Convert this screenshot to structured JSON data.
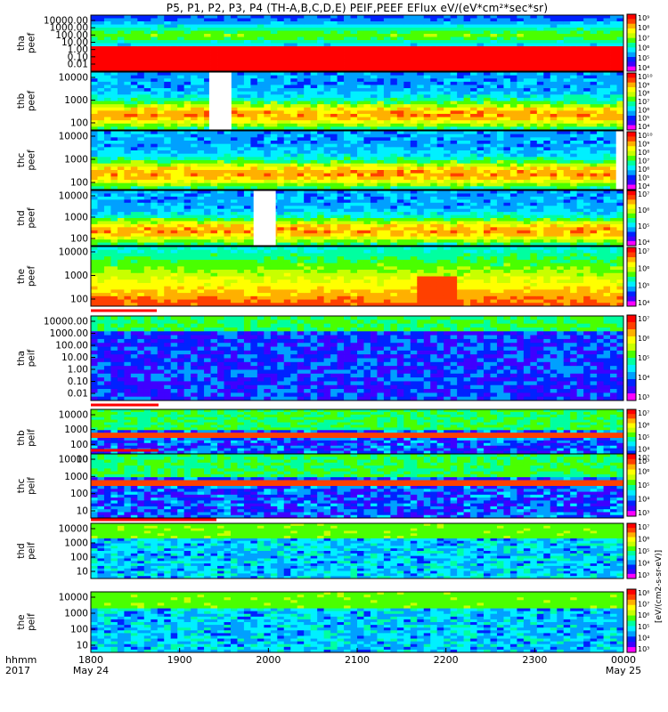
{
  "title": "P5, P1, P2, P3, P4 (TH-A,B,C,D,E) PEIF,PEEF EFlux eV/(eV*cm²*sec*sr)",
  "chart_data": {
    "type": "heatmap",
    "x_axis": {
      "range": [
        "1800",
        "0000"
      ],
      "ticks": [
        "1800",
        "1900",
        "2000",
        "2100",
        "2200",
        "2300",
        "0000"
      ],
      "dates": [
        "May 24",
        "May 25"
      ],
      "corner_label": "hhmm",
      "corner_year": "2017"
    },
    "colorbar_unit_label": "[eV/(cm2-s-sr-eV)]",
    "colorbar_label_short": "(eV/(cm2-s-sr-eV))",
    "colormap": [
      "#ff00ff",
      "#3f00ff",
      "#0022ff",
      "#00a0ff",
      "#00f0ff",
      "#00ffa0",
      "#4aff00",
      "#c8ff00",
      "#ffff00",
      "#ffb000",
      "#ff4000",
      "#ff0000"
    ],
    "panels": [
      {
        "probe": "tha",
        "product": "peef",
        "yticks": [
          "10000.00",
          "1000.00",
          "100.00",
          "10.00",
          "1.00",
          "0.10",
          "0.01"
        ],
        "cbar_ticks": [
          "10⁹",
          "10⁸",
          "10⁷",
          "10⁶",
          "10⁵",
          "10⁴"
        ],
        "gaps": []
      },
      {
        "probe": "thb",
        "product": "peef",
        "yticks": [
          "10000",
          "1000",
          "100"
        ],
        "cbar_ticks": [
          "10¹⁰",
          "10⁹",
          "10⁸",
          "10⁷",
          "10⁶",
          "10⁵",
          "10⁴"
        ],
        "gaps": [
          [
            1880,
            1895
          ]
        ]
      },
      {
        "probe": "thc",
        "product": "peef",
        "yticks": [
          "10000",
          "1000",
          "100"
        ],
        "cbar_ticks": [
          "10¹⁰",
          "10⁹",
          "10⁸",
          "10⁷",
          "10⁶",
          "10⁵",
          "10⁴"
        ],
        "gaps": [
          [
            2355,
            2400
          ]
        ]
      },
      {
        "probe": "thd",
        "product": "peef",
        "yticks": [
          "10000",
          "1000",
          "100"
        ],
        "cbar_ticks": [
          "10⁷",
          "10⁶",
          "10⁵",
          "10⁴"
        ],
        "gaps": [
          [
            1950,
            1965
          ]
        ]
      },
      {
        "probe": "the",
        "product": "peef",
        "yticks": [
          "10000",
          "1000",
          "100"
        ],
        "cbar_ticks": [
          "10⁷",
          "10⁶",
          "10⁵",
          "10⁴"
        ],
        "gaps": []
      },
      {
        "probe": "tha",
        "product": "peif",
        "yticks": [
          "10000.00",
          "1000.00",
          "100.00",
          "10.00",
          "1.00",
          "0.10",
          "0.01"
        ],
        "cbar_ticks": [
          "10⁷",
          "10⁶",
          "10⁵",
          "10⁴",
          "10³"
        ],
        "gaps": []
      },
      {
        "probe": "thb",
        "product": "peif",
        "yticks": [
          "10000",
          "1000",
          "100",
          "10"
        ],
        "cbar_ticks": [
          "10⁷",
          "10⁶",
          "10⁵",
          "10⁴",
          "10³"
        ],
        "gaps": []
      },
      {
        "probe": "thc",
        "product": "peif",
        "yticks": [
          "10000",
          "1000",
          "100",
          "10"
        ],
        "cbar_ticks": [
          "10⁷",
          "10⁶",
          "10⁵",
          "10⁴",
          "10³"
        ],
        "gaps": []
      },
      {
        "probe": "thd",
        "product": "peif",
        "yticks": [
          "10000",
          "1000",
          "100",
          "10"
        ],
        "cbar_ticks": [
          "10⁷",
          "10⁶",
          "10⁵",
          "10⁴",
          "10³"
        ],
        "gaps": []
      },
      {
        "probe": "the",
        "product": "peif",
        "yticks": [
          "10000",
          "1000",
          "100",
          "10"
        ],
        "cbar_ticks": [
          "10⁸",
          "10⁷",
          "10⁶",
          "10⁵",
          "10⁴",
          "10³"
        ],
        "gaps": []
      }
    ]
  }
}
